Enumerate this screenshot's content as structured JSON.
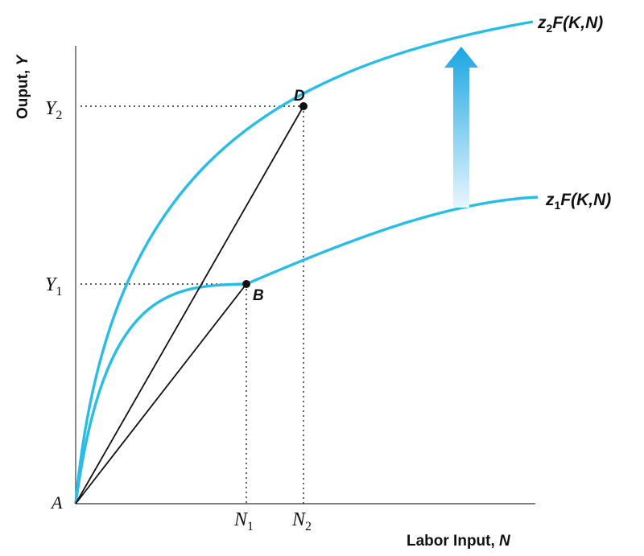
{
  "diagram": {
    "colors": {
      "curve": "#29bde6",
      "line": "#111111",
      "arrow_top": "#1aa6e2",
      "arrow_bottom": "#e8f6fd"
    },
    "axes": {
      "y_label_text": "Ouput, ",
      "y_label_var": "Y",
      "x_label_text": "Labor Input, ",
      "x_label_var": "N"
    },
    "origin_label": "A",
    "ticks": {
      "y1": {
        "base": "Y",
        "sub": "1"
      },
      "y2": {
        "base": "Y",
        "sub": "2"
      },
      "n1": {
        "base": "N",
        "sub": "1"
      },
      "n2": {
        "base": "N",
        "sub": "2"
      }
    },
    "points": {
      "b": "B",
      "d": "D"
    },
    "curves": {
      "lower": {
        "z": "z",
        "z_sub": "1",
        "func": "F",
        "args": "(K,N)"
      },
      "upper": {
        "z": "z",
        "z_sub": "2",
        "func": "F",
        "args": "(K,N)"
      }
    },
    "shift_arrow_icon": "up-arrow-icon"
  }
}
